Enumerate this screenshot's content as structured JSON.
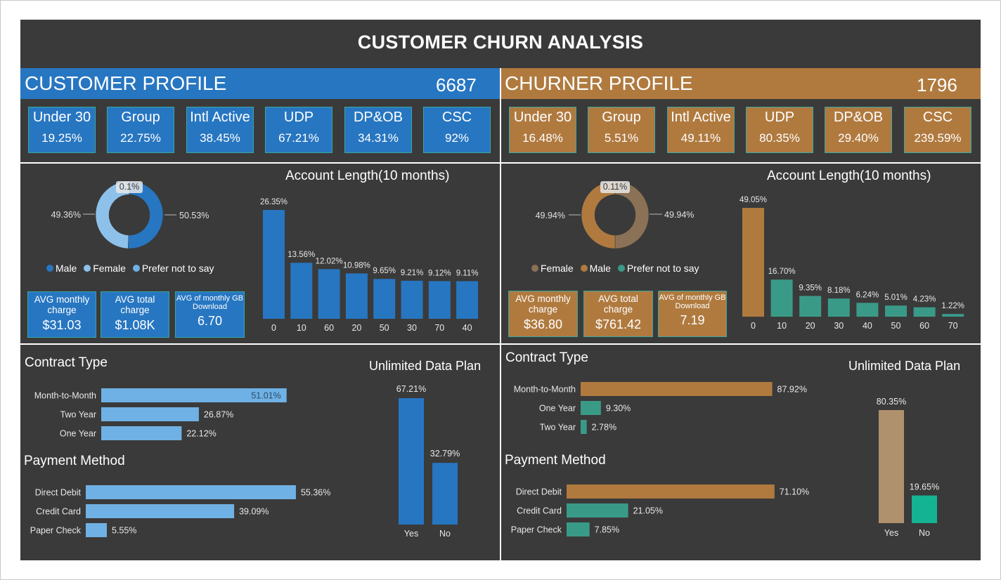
{
  "title": "CUSTOMER CHURN ANALYSIS",
  "colors": {
    "background": "#3a3a3a",
    "customer_blue": "#2776c1",
    "customer_light": "#6fb1e4",
    "churner_brown": "#b07a3f",
    "churner_teal": "#3a9a88",
    "churner_tan": "#b0916d",
    "churner_green": "#13b394",
    "kpi_border": "#39a8a0"
  },
  "customer": {
    "header": "CUSTOMER PROFILE",
    "count": "6687",
    "kpis": [
      {
        "label": "Under 30",
        "value": "19.25%"
      },
      {
        "label": "Group",
        "value": "22.75%"
      },
      {
        "label": "Intl Active",
        "value": "38.45%"
      },
      {
        "label": "UDP",
        "value": "67.21%"
      },
      {
        "label": "DP&OB",
        "value": "34.31%"
      },
      {
        "label": "CSC",
        "value": "92%"
      }
    ],
    "legend": [
      {
        "label": "Male",
        "color": "#2776c1"
      },
      {
        "label": "Female",
        "color": "#8ec1ea"
      },
      {
        "label": "Prefer not to say",
        "color": "#6fb1e4"
      }
    ],
    "avg": [
      {
        "label": "AVG monthly charge",
        "value": "$31.03"
      },
      {
        "label": "AVG total charge",
        "value": "$1.08K"
      },
      {
        "label": "AVG of monthly GB Download",
        "value": "6.70"
      }
    ],
    "account_title": "Account Length(10 months)",
    "contract_title": "Contract Type",
    "payment_title": "Payment Method",
    "udp_title": "Unlimited Data Plan"
  },
  "churner": {
    "header": "CHURNER PROFILE",
    "count": "1796",
    "kpis": [
      {
        "label": "Under 30",
        "value": "16.48%"
      },
      {
        "label": "Group",
        "value": "5.51%"
      },
      {
        "label": "Intl Active",
        "value": "49.11%"
      },
      {
        "label": "UDP",
        "value": "80.35%"
      },
      {
        "label": "DP&OB",
        "value": "29.40%"
      },
      {
        "label": "CSC",
        "value": "239.59%"
      }
    ],
    "legend": [
      {
        "label": "Female",
        "color": "#8b7155"
      },
      {
        "label": "Male",
        "color": "#b07a3f"
      },
      {
        "label": "Prefer not to say",
        "color": "#3a9a88"
      }
    ],
    "avg": [
      {
        "label": "AVG monthly charge",
        "value": "$36.80"
      },
      {
        "label": "AVG total charge",
        "value": "$761.42"
      },
      {
        "label": "AVG of monthly GB Download",
        "value": "7.19"
      }
    ],
    "account_title": "Account Length(10 months)",
    "contract_title": "Contract Type",
    "payment_title": "Payment Method",
    "udp_title": "Unlimited Data Plan"
  },
  "chart_data": [
    {
      "id": "cust-gender",
      "type": "pie",
      "variant": "donut",
      "labels": [
        "Male",
        "Female",
        "Prefer not to say"
      ],
      "values": [
        50.53,
        49.36,
        0.1
      ],
      "value_labels": [
        "50.53%",
        "49.36%",
        "0.1%"
      ],
      "colors": [
        "#2776c1",
        "#8ec1ea",
        "#d8d8d8"
      ]
    },
    {
      "id": "cust-account",
      "type": "bar",
      "title": "Account Length(10 months)",
      "categories": [
        "0",
        "10",
        "60",
        "20",
        "50",
        "30",
        "70",
        "40"
      ],
      "values": [
        26.35,
        13.56,
        12.02,
        10.98,
        9.65,
        9.21,
        9.12,
        9.11
      ],
      "value_labels": [
        "26.35%",
        "13.56%",
        "12.02%",
        "10.98%",
        "9.65%",
        "9.21%",
        "9.12%",
        "9.11%"
      ],
      "colors": [
        "#2776c1"
      ]
    },
    {
      "id": "cust-contract",
      "type": "bar",
      "orientation": "horizontal",
      "title": "Contract Type",
      "categories": [
        "Month-to-Month",
        "Two Year",
        "One Year"
      ],
      "values": [
        51.01,
        26.87,
        22.12
      ],
      "value_labels": [
        "51.01%",
        "26.87%",
        "22.12%"
      ],
      "colors": [
        "#6fb1e4"
      ]
    },
    {
      "id": "cust-payment",
      "type": "bar",
      "orientation": "horizontal",
      "title": "Payment Method",
      "categories": [
        "Direct Debit",
        "Credit Card",
        "Paper Check"
      ],
      "values": [
        55.36,
        39.09,
        5.55
      ],
      "value_labels": [
        "55.36%",
        "39.09%",
        "5.55%"
      ],
      "colors": [
        "#6fb1e4"
      ]
    },
    {
      "id": "cust-udp",
      "type": "bar",
      "title": "Unlimited Data Plan",
      "categories": [
        "Yes",
        "No"
      ],
      "values": [
        67.21,
        32.79
      ],
      "value_labels": [
        "67.21%",
        "32.79%"
      ],
      "colors": [
        "#2776c1"
      ]
    },
    {
      "id": "churn-gender",
      "type": "pie",
      "variant": "donut",
      "labels": [
        "Female",
        "Male",
        "Prefer not to say"
      ],
      "values": [
        49.94,
        49.94,
        0.11
      ],
      "value_labels": [
        "49.94%",
        "49.94%",
        "0.11%"
      ],
      "colors": [
        "#8b7155",
        "#b07a3f",
        "#3a9a88"
      ]
    },
    {
      "id": "churn-account",
      "type": "bar",
      "title": "Account Length(10 months)",
      "categories": [
        "0",
        "10",
        "20",
        "30",
        "40",
        "50",
        "60",
        "70"
      ],
      "values": [
        49.05,
        16.7,
        9.35,
        8.18,
        6.24,
        5.01,
        4.23,
        1.22
      ],
      "value_labels": [
        "49.05%",
        "16.70%",
        "9.35%",
        "8.18%",
        "6.24%",
        "5.01%",
        "4.23%",
        "1.22%"
      ],
      "colors": [
        "#b07a3f",
        "#3a9a88"
      ]
    },
    {
      "id": "churn-contract",
      "type": "bar",
      "orientation": "horizontal",
      "title": "Contract Type",
      "categories": [
        "Month-to-Month",
        "One Year",
        "Two Year"
      ],
      "values": [
        87.92,
        9.3,
        2.78
      ],
      "value_labels": [
        "87.92%",
        "9.30%",
        "2.78%"
      ],
      "colors": [
        "#b07a3f",
        "#3a9a88"
      ]
    },
    {
      "id": "churn-payment",
      "type": "bar",
      "orientation": "horizontal",
      "title": "Payment Method",
      "categories": [
        "Direct Debit",
        "Credit Card",
        "Paper Check"
      ],
      "values": [
        71.1,
        21.05,
        7.85
      ],
      "value_labels": [
        "71.10%",
        "21.05%",
        "7.85%"
      ],
      "colors": [
        "#b07a3f",
        "#3a9a88"
      ]
    },
    {
      "id": "churn-udp",
      "type": "bar",
      "title": "Unlimited Data Plan",
      "categories": [
        "Yes",
        "No"
      ],
      "values": [
        80.35,
        19.65
      ],
      "value_labels": [
        "80.35%",
        "19.65%"
      ],
      "colors": [
        "#b0916d",
        "#13b394"
      ]
    }
  ]
}
